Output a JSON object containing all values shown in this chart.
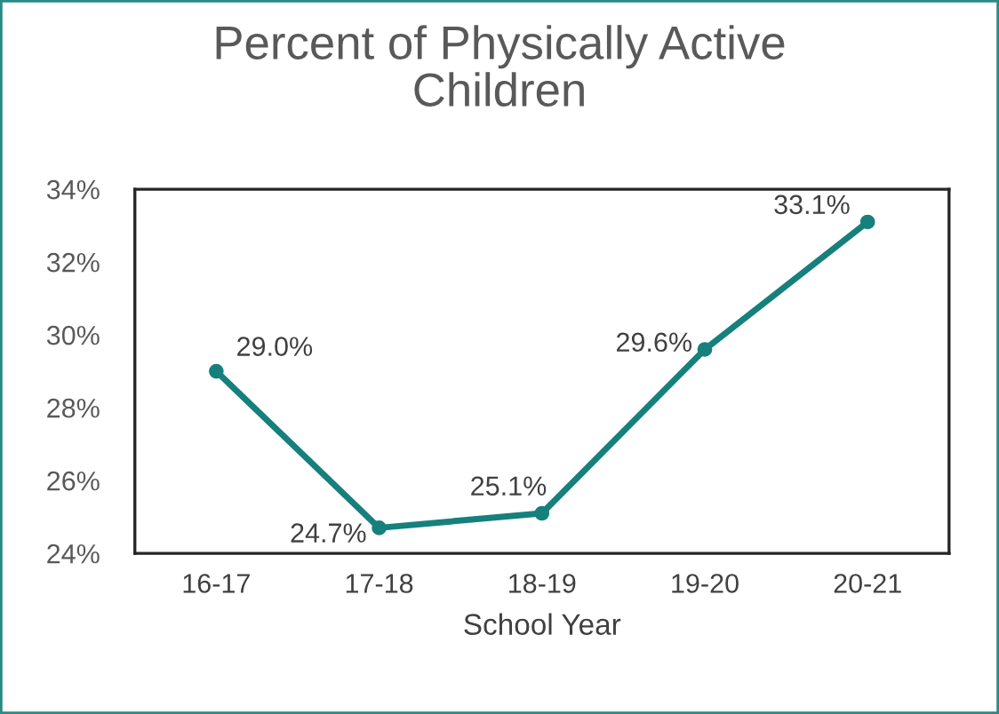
{
  "chart_data": {
    "type": "line",
    "title": "Percent of Physically Active Children",
    "xlabel": "School Year",
    "categories": [
      "16-17",
      "17-18",
      "18-19",
      "19-20",
      "20-21"
    ],
    "series": [
      {
        "color": "#16807d",
        "values": [
          29.0,
          24.7,
          25.1,
          29.6,
          33.1
        ]
      }
    ],
    "value_labels": [
      "29.0%",
      "24.7%",
      "25.1%",
      "29.6%",
      "33.1%"
    ],
    "ylim": [
      24,
      34
    ],
    "yticks": [
      {
        "value": 24,
        "label": "24%"
      },
      {
        "value": 26,
        "label": "26%"
      },
      {
        "value": 28,
        "label": "28%"
      },
      {
        "value": 30,
        "label": "30%"
      },
      {
        "value": 32,
        "label": "32%"
      },
      {
        "value": 34,
        "label": "34%"
      }
    ],
    "marker": "circle",
    "line_style": "solid",
    "grid": false,
    "legend": false
  }
}
